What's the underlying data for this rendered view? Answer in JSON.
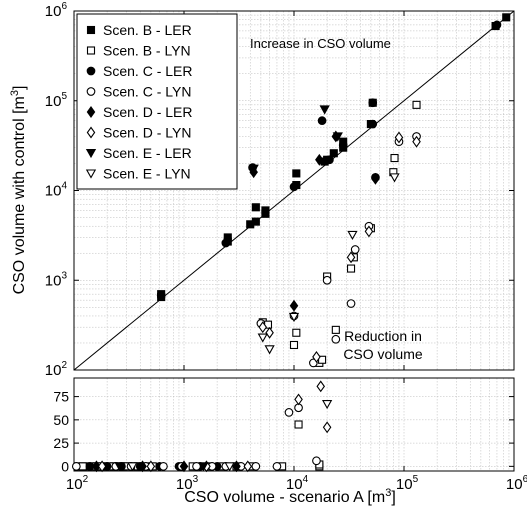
{
  "chart_data": {
    "type": "scatter",
    "xlabel_main": "CSO volume - scenario A [m",
    "xlabel_sup": "3",
    "xlabel_end": "]",
    "ylabel_main": "CSO volume with control [m",
    "ylabel_sup": "3",
    "ylabel_end": "]",
    "x_scale": "log",
    "xlim": [
      100,
      1000000
    ],
    "upper_panel": {
      "y_scale": "log",
      "ylim": [
        100,
        1000000
      ]
    },
    "lower_panel": {
      "y_scale": "linear",
      "ylim": [
        -5,
        95
      ],
      "yticks": [
        0,
        25,
        50,
        75
      ]
    },
    "x_tick_labels": [
      {
        "base": "10",
        "exp": "2"
      },
      {
        "base": "10",
        "exp": "3"
      },
      {
        "base": "10",
        "exp": "4"
      },
      {
        "base": "10",
        "exp": "5"
      },
      {
        "base": "10",
        "exp": "6"
      }
    ],
    "y_tick_labels": [
      {
        "base": "10",
        "exp": "2"
      },
      {
        "base": "10",
        "exp": "3"
      },
      {
        "base": "10",
        "exp": "4"
      },
      {
        "base": "10",
        "exp": "5"
      },
      {
        "base": "10",
        "exp": "6"
      }
    ],
    "lower_tick_labels": [
      "0",
      "25",
      "50",
      "75"
    ],
    "grid": true,
    "reference_line": "y = x",
    "annotations": {
      "increase": "Increase in CSO volume",
      "reduction_line1": "Reduction in",
      "reduction_line2": "CSO volume"
    },
    "legend_position": "top-left",
    "series": [
      {
        "name": "Scen. B - LER",
        "marker": "square",
        "filled": true,
        "points": [
          [
            620,
            650
          ],
          [
            620,
            700
          ],
          [
            2500,
            2700
          ],
          [
            2500,
            3000
          ],
          [
            4000,
            4200
          ],
          [
            4500,
            4500
          ],
          [
            4500,
            6500
          ],
          [
            5500,
            5500
          ],
          [
            5500,
            6000
          ],
          [
            10500,
            11500
          ],
          [
            10500,
            15500
          ],
          [
            19000,
            21000
          ],
          [
            20000,
            22000
          ],
          [
            23000,
            26000
          ],
          [
            28000,
            30000
          ],
          [
            28000,
            35000
          ],
          [
            50000,
            55000
          ],
          [
            52000,
            95000
          ],
          [
            680000,
            680000
          ],
          [
            850000,
            850000
          ]
        ],
        "zero_x": [
          110,
          130,
          160,
          190,
          230,
          280,
          360,
          470
        ]
      },
      {
        "name": "Scen. B - LYN",
        "marker": "square",
        "filled": false,
        "points": [
          [
            5200,
            340
          ],
          [
            5800,
            320
          ],
          [
            10000,
            190
          ],
          [
            10500,
            260
          ],
          [
            17000,
            120
          ],
          [
            18000,
            130
          ],
          [
            20000,
            1100
          ],
          [
            24000,
            280
          ],
          [
            33000,
            1350
          ],
          [
            35000,
            1800
          ],
          [
            50000,
            3800
          ],
          [
            80000,
            16000
          ],
          [
            82000,
            23000
          ],
          [
            130000,
            90000
          ]
        ],
        "zero_x": [
          120,
          145,
          175,
          210,
          250,
          300,
          380,
          520,
          1200,
          1700,
          2200,
          3000,
          4000,
          7800,
          17000
        ],
        "lower_points": [
          [
            11000,
            45
          ],
          [
            17000,
            2
          ]
        ]
      },
      {
        "name": "Scen. C - LER",
        "marker": "circle",
        "filled": true,
        "points": [
          [
            620,
            680
          ],
          [
            2400,
            2600
          ],
          [
            4200,
            18000
          ],
          [
            10000,
            11000
          ],
          [
            18000,
            60000
          ],
          [
            21000,
            22000
          ],
          [
            28000,
            32000
          ],
          [
            52000,
            55000
          ],
          [
            52000,
            95000
          ],
          [
            55000,
            14000
          ],
          [
            700000,
            700000
          ]
        ],
        "zero_x": [
          140,
          200,
          270,
          400,
          600,
          900,
          1400,
          2000
        ]
      },
      {
        "name": "Scen. C - LYN",
        "marker": "circle",
        "filled": false,
        "points": [
          [
            5000,
            330
          ],
          [
            10000,
            400
          ],
          [
            15000,
            120
          ],
          [
            20000,
            1000
          ],
          [
            24000,
            220
          ],
          [
            33000,
            550
          ],
          [
            36000,
            2200
          ],
          [
            48000,
            4000
          ],
          [
            90000,
            35000
          ],
          [
            130000,
            40000
          ]
        ],
        "zero_x": [
          105,
          240,
          330,
          450,
          650,
          950,
          1300,
          1800,
          2400,
          3300,
          4500,
          7000
        ],
        "lower_points": [
          [
            9000,
            58
          ],
          [
            11000,
            63
          ],
          [
            16000,
            6
          ]
        ]
      },
      {
        "name": "Scen. D - LER",
        "marker": "diamond",
        "filled": true,
        "points": [
          [
            4300,
            16000
          ],
          [
            10000,
            520
          ],
          [
            17000,
            22000
          ],
          [
            24000,
            40000
          ],
          [
            55000,
            13500
          ]
        ],
        "zero_x": [
          160,
          420,
          1000,
          3000
        ]
      },
      {
        "name": "Scen. D - LYN",
        "marker": "diamond",
        "filled": false,
        "points": [
          [
            5200,
            300
          ],
          [
            6000,
            260
          ],
          [
            16000,
            140
          ],
          [
            33000,
            1800
          ],
          [
            48000,
            3500
          ],
          [
            90000,
            39000
          ],
          [
            130000,
            35000
          ]
        ],
        "zero_x": [
          180,
          500,
          1600,
          3800
        ],
        "lower_points": [
          [
            11000,
            72
          ],
          [
            17500,
            86
          ],
          [
            20000,
            42
          ]
        ]
      },
      {
        "name": "Scen. E - LER",
        "marker": "triangle-down",
        "filled": true,
        "points": [
          [
            4300,
            17500
          ],
          [
            19000,
            80000
          ],
          [
            25000,
            40000
          ]
        ],
        "zero_x": [
          260,
          1500
        ]
      },
      {
        "name": "Scen. E - LYN",
        "marker": "triangle-down",
        "filled": false,
        "points": [
          [
            5200,
            230
          ],
          [
            6000,
            170
          ],
          [
            10000,
            390
          ],
          [
            34000,
            3200
          ],
          [
            82000,
            14000
          ]
        ],
        "zero_x": [
          340,
          2600
        ],
        "lower_points": [
          [
            20000,
            67
          ]
        ]
      }
    ]
  }
}
